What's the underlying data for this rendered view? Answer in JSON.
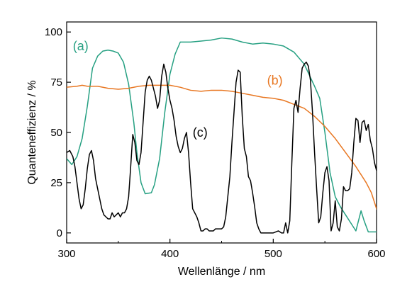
{
  "chart_data": {
    "type": "line",
    "title": "",
    "xlabel": "Wellenlänge / nm",
    "ylabel": "Quanteneffizienz / %",
    "xlim": [
      300,
      600
    ],
    "ylim": [
      -5,
      105
    ],
    "xticks": [
      300,
      400,
      500,
      600
    ],
    "xminor": [
      350,
      450,
      550
    ],
    "yticks": [
      0,
      25,
      50,
      75,
      100
    ],
    "grid": false,
    "legend": "none",
    "series": [
      {
        "name": "(a)",
        "color": "#26a082",
        "label_pos": [
          306,
          93
        ],
        "points": [
          [
            300,
            37
          ],
          [
            305,
            34
          ],
          [
            310,
            38
          ],
          [
            315,
            47
          ],
          [
            320,
            63
          ],
          [
            325,
            82
          ],
          [
            330,
            88
          ],
          [
            335,
            90.5
          ],
          [
            340,
            91
          ],
          [
            345,
            90.5
          ],
          [
            350,
            89.5
          ],
          [
            355,
            85
          ],
          [
            360,
            74
          ],
          [
            365,
            55
          ],
          [
            368,
            40
          ],
          [
            372,
            25
          ],
          [
            376,
            19.5
          ],
          [
            382,
            20
          ],
          [
            385,
            24
          ],
          [
            390,
            37
          ],
          [
            395,
            60
          ],
          [
            400,
            79
          ],
          [
            405,
            89
          ],
          [
            410,
            95
          ],
          [
            420,
            95
          ],
          [
            430,
            95.5
          ],
          [
            440,
            96
          ],
          [
            450,
            97
          ],
          [
            460,
            96.5
          ],
          [
            470,
            95
          ],
          [
            480,
            94
          ],
          [
            490,
            94.5
          ],
          [
            500,
            94
          ],
          [
            510,
            93
          ],
          [
            520,
            90
          ],
          [
            530,
            84
          ],
          [
            540,
            73
          ],
          [
            545,
            67
          ],
          [
            550,
            50
          ],
          [
            555,
            30
          ],
          [
            560,
            18
          ],
          [
            565,
            13
          ],
          [
            570,
            9
          ],
          [
            575,
            5
          ],
          [
            580,
            1
          ],
          [
            585,
            11
          ],
          [
            588,
            6
          ],
          [
            592,
            0.5
          ],
          [
            600,
            0.5
          ]
        ]
      },
      {
        "name": "(b)",
        "color": "#e87722",
        "label_pos": [
          494,
          76
        ],
        "points": [
          [
            300,
            72.5
          ],
          [
            310,
            73
          ],
          [
            315,
            73.5
          ],
          [
            320,
            73
          ],
          [
            330,
            73
          ],
          [
            340,
            72
          ],
          [
            350,
            71.5
          ],
          [
            360,
            72
          ],
          [
            370,
            73
          ],
          [
            380,
            73.5
          ],
          [
            390,
            73.5
          ],
          [
            400,
            73.5
          ],
          [
            410,
            72.5
          ],
          [
            420,
            71
          ],
          [
            430,
            70.5
          ],
          [
            440,
            71
          ],
          [
            450,
            71
          ],
          [
            460,
            70.5
          ],
          [
            470,
            69.5
          ],
          [
            480,
            68.5
          ],
          [
            490,
            67.5
          ],
          [
            500,
            67
          ],
          [
            510,
            66
          ],
          [
            520,
            64
          ],
          [
            530,
            62
          ],
          [
            540,
            58
          ],
          [
            550,
            53
          ],
          [
            560,
            47
          ],
          [
            570,
            40
          ],
          [
            580,
            33
          ],
          [
            590,
            25
          ],
          [
            595,
            20
          ],
          [
            600,
            12
          ],
          [
            605,
            7
          ]
        ]
      },
      {
        "name": "(c)",
        "color": "#000000",
        "label_pos": [
          422,
          50
        ],
        "points": [
          [
            300,
            40
          ],
          [
            303,
            41
          ],
          [
            306,
            38
          ],
          [
            308,
            33
          ],
          [
            310,
            25
          ],
          [
            312,
            17
          ],
          [
            314,
            12
          ],
          [
            316,
            14
          ],
          [
            318,
            22
          ],
          [
            320,
            32
          ],
          [
            322,
            39
          ],
          [
            324,
            41
          ],
          [
            326,
            36
          ],
          [
            328,
            27
          ],
          [
            330,
            22
          ],
          [
            332,
            17
          ],
          [
            334,
            12
          ],
          [
            336,
            9
          ],
          [
            338,
            8
          ],
          [
            340,
            7
          ],
          [
            342,
            7
          ],
          [
            344,
            10
          ],
          [
            346,
            8
          ],
          [
            348,
            9
          ],
          [
            350,
            10
          ],
          [
            352,
            8
          ],
          [
            354,
            10
          ],
          [
            356,
            10
          ],
          [
            358,
            12
          ],
          [
            360,
            18
          ],
          [
            362,
            33
          ],
          [
            364,
            49
          ],
          [
            366,
            45
          ],
          [
            368,
            36
          ],
          [
            370,
            34
          ],
          [
            372,
            40
          ],
          [
            374,
            55
          ],
          [
            376,
            70
          ],
          [
            378,
            76
          ],
          [
            380,
            78
          ],
          [
            382,
            76
          ],
          [
            384,
            72
          ],
          [
            386,
            68
          ],
          [
            388,
            62
          ],
          [
            390,
            66
          ],
          [
            392,
            78
          ],
          [
            394,
            84
          ],
          [
            396,
            80
          ],
          [
            398,
            72
          ],
          [
            400,
            66
          ],
          [
            402,
            62
          ],
          [
            404,
            56
          ],
          [
            406,
            48
          ],
          [
            408,
            43
          ],
          [
            410,
            40
          ],
          [
            412,
            42
          ],
          [
            414,
            47
          ],
          [
            416,
            50
          ],
          [
            418,
            40
          ],
          [
            420,
            25
          ],
          [
            422,
            12
          ],
          [
            424,
            10
          ],
          [
            426,
            8
          ],
          [
            428,
            5
          ],
          [
            430,
            1
          ],
          [
            432,
            1
          ],
          [
            434,
            2
          ],
          [
            436,
            2
          ],
          [
            438,
            1
          ],
          [
            440,
            1
          ],
          [
            442,
            1
          ],
          [
            444,
            2
          ],
          [
            446,
            2
          ],
          [
            448,
            2
          ],
          [
            450,
            2
          ],
          [
            452,
            3
          ],
          [
            454,
            8
          ],
          [
            456,
            18
          ],
          [
            458,
            28
          ],
          [
            460,
            45
          ],
          [
            462,
            60
          ],
          [
            464,
            75
          ],
          [
            466,
            81
          ],
          [
            468,
            80
          ],
          [
            470,
            58
          ],
          [
            472,
            42
          ],
          [
            474,
            38
          ],
          [
            476,
            28
          ],
          [
            478,
            26
          ],
          [
            480,
            20
          ],
          [
            482,
            13
          ],
          [
            484,
            5
          ],
          [
            486,
            2
          ],
          [
            488,
            0
          ],
          [
            490,
            0
          ],
          [
            495,
            0
          ],
          [
            500,
            0
          ],
          [
            505,
            1
          ],
          [
            508,
            0
          ],
          [
            510,
            0
          ],
          [
            512,
            5
          ],
          [
            514,
            0
          ],
          [
            516,
            6
          ],
          [
            518,
            35
          ],
          [
            520,
            62
          ],
          [
            522,
            66
          ],
          [
            524,
            60
          ],
          [
            526,
            72
          ],
          [
            528,
            82
          ],
          [
            530,
            84
          ],
          [
            532,
            85
          ],
          [
            534,
            83
          ],
          [
            536,
            76
          ],
          [
            538,
            60
          ],
          [
            540,
            40
          ],
          [
            542,
            22
          ],
          [
            544,
            5
          ],
          [
            546,
            8
          ],
          [
            548,
            20
          ],
          [
            550,
            30
          ],
          [
            552,
            33
          ],
          [
            554,
            26
          ],
          [
            556,
            1
          ],
          [
            558,
            5
          ],
          [
            560,
            16
          ],
          [
            562,
            3
          ],
          [
            564,
            1
          ],
          [
            566,
            7
          ],
          [
            568,
            23
          ],
          [
            570,
            21
          ],
          [
            572,
            21
          ],
          [
            574,
            22
          ],
          [
            576,
            30
          ],
          [
            578,
            45
          ],
          [
            580,
            57
          ],
          [
            582,
            56
          ],
          [
            584,
            45
          ],
          [
            586,
            55
          ],
          [
            588,
            56
          ],
          [
            590,
            51
          ],
          [
            592,
            54
          ],
          [
            594,
            46
          ],
          [
            596,
            42
          ],
          [
            598,
            35
          ],
          [
            600,
            31
          ]
        ]
      }
    ]
  }
}
